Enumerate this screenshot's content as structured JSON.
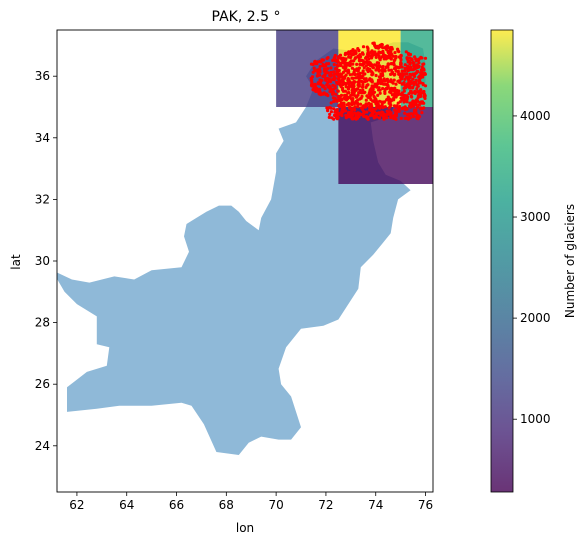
{
  "chart_data": {
    "type": "map",
    "title": "PAK, 2.5 °",
    "xlabel": "lon",
    "ylabel": "lat",
    "xlim": [
      61.2,
      76.3
    ],
    "ylim": [
      22.5,
      37.5
    ],
    "xticks": [
      62,
      64,
      66,
      68,
      70,
      72,
      74,
      76
    ],
    "yticks": [
      24,
      26,
      28,
      30,
      32,
      34,
      36
    ],
    "country_color": "#8fb9d8",
    "glacier_point_color": "#ff0000",
    "colorbar": {
      "label": "Number of glaciers",
      "range": [
        280,
        4850
      ],
      "ticks": [
        1000,
        2000,
        3000,
        4000
      ],
      "colormap": "viridis"
    },
    "grid_cells": [
      {
        "lon_range": [
          70.0,
          72.5
        ],
        "lat_range": [
          35.0,
          37.5
        ],
        "count": 1150
      },
      {
        "lon_range": [
          72.5,
          75.0
        ],
        "lat_range": [
          35.0,
          37.5
        ],
        "count": 4850
      },
      {
        "lon_range": [
          75.0,
          76.3
        ],
        "lat_range": [
          35.0,
          37.5
        ],
        "count": 3400
      },
      {
        "lon_range": [
          72.5,
          76.3
        ],
        "lat_range": [
          32.5,
          35.0
        ],
        "count": 400
      }
    ],
    "country_outline": [
      [
        61.0,
        29.7
      ],
      [
        61.8,
        29.4
      ],
      [
        62.5,
        29.3
      ],
      [
        63.5,
        29.5
      ],
      [
        64.3,
        29.4
      ],
      [
        65.0,
        29.7
      ],
      [
        66.2,
        29.8
      ],
      [
        66.5,
        30.3
      ],
      [
        66.3,
        30.8
      ],
      [
        66.4,
        31.2
      ],
      [
        66.8,
        31.4
      ],
      [
        67.2,
        31.6
      ],
      [
        67.7,
        31.8
      ],
      [
        68.2,
        31.8
      ],
      [
        68.5,
        31.6
      ],
      [
        68.8,
        31.3
      ],
      [
        69.3,
        31.0
      ],
      [
        69.4,
        31.4
      ],
      [
        69.8,
        32.0
      ],
      [
        70.0,
        32.9
      ],
      [
        70.0,
        33.5
      ],
      [
        70.3,
        33.9
      ],
      [
        70.1,
        34.3
      ],
      [
        70.8,
        34.5
      ],
      [
        71.2,
        35.0
      ],
      [
        71.5,
        35.6
      ],
      [
        71.2,
        36.0
      ],
      [
        71.6,
        36.5
      ],
      [
        72.3,
        36.9
      ],
      [
        73.3,
        36.8
      ],
      [
        74.0,
        36.9
      ],
      [
        74.7,
        37.1
      ],
      [
        75.3,
        37.1
      ],
      [
        75.9,
        36.9
      ],
      [
        76.0,
        36.4
      ],
      [
        76.0,
        35.8
      ],
      [
        75.4,
        35.6
      ],
      [
        74.8,
        35.3
      ],
      [
        74.6,
        34.7
      ],
      [
        73.8,
        34.5
      ],
      [
        73.9,
        33.9
      ],
      [
        74.1,
        33.2
      ],
      [
        74.4,
        32.8
      ],
      [
        75.0,
        32.6
      ],
      [
        75.4,
        32.3
      ],
      [
        74.9,
        32.0
      ],
      [
        74.7,
        31.4
      ],
      [
        74.6,
        30.9
      ],
      [
        73.9,
        30.2
      ],
      [
        73.4,
        29.8
      ],
      [
        73.3,
        29.1
      ],
      [
        72.5,
        28.1
      ],
      [
        71.9,
        27.9
      ],
      [
        71.0,
        27.8
      ],
      [
        70.4,
        27.2
      ],
      [
        70.1,
        26.5
      ],
      [
        70.2,
        26.0
      ],
      [
        70.6,
        25.6
      ],
      [
        71.0,
        24.6
      ],
      [
        70.6,
        24.2
      ],
      [
        70.1,
        24.2
      ],
      [
        69.4,
        24.3
      ],
      [
        68.9,
        24.1
      ],
      [
        68.5,
        23.7
      ],
      [
        67.6,
        23.8
      ],
      [
        67.1,
        24.7
      ],
      [
        66.6,
        25.3
      ],
      [
        66.2,
        25.4
      ],
      [
        65.0,
        25.3
      ],
      [
        63.7,
        25.3
      ],
      [
        62.8,
        25.2
      ],
      [
        61.6,
        25.1
      ],
      [
        61.6,
        25.9
      ],
      [
        62.4,
        26.4
      ],
      [
        63.2,
        26.6
      ],
      [
        63.3,
        27.2
      ],
      [
        62.8,
        27.3
      ],
      [
        62.8,
        28.2
      ],
      [
        62.0,
        28.6
      ],
      [
        61.5,
        29.0
      ],
      [
        61.0,
        29.7
      ]
    ]
  }
}
